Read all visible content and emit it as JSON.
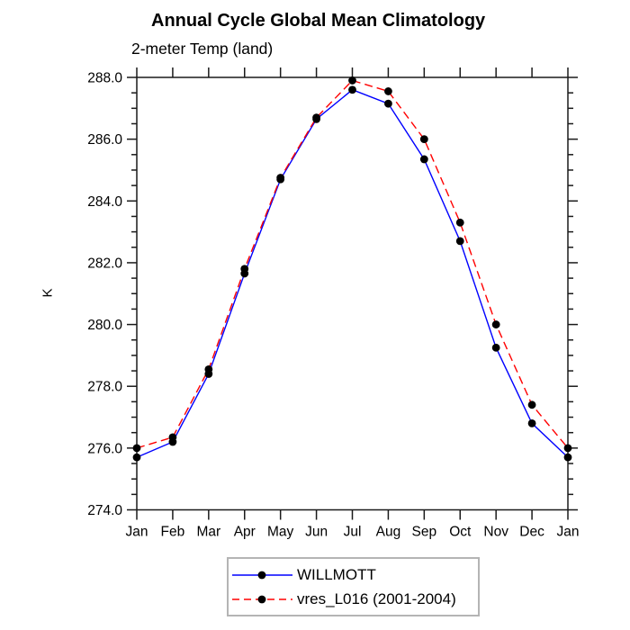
{
  "chart_data": {
    "type": "line",
    "title": "Annual Cycle Global Mean Climatology",
    "subtitle": "2-meter Temp (land)",
    "ylabel": "K",
    "xlabel": "",
    "categories": [
      "Jan",
      "Feb",
      "Mar",
      "Apr",
      "May",
      "Jun",
      "Jul",
      "Aug",
      "Sep",
      "Oct",
      "Nov",
      "Dec",
      "Jan"
    ],
    "ylim": [
      274.0,
      288.0
    ],
    "ytick_major": [
      274,
      276,
      278,
      280,
      282,
      284,
      286,
      288
    ],
    "ytick_labels": [
      "274.0",
      "276.0",
      "278.0",
      "280.0",
      "282.0",
      "284.0",
      "286.0",
      "288.0"
    ],
    "ytick_minor_step": 0.5,
    "grid": false,
    "legend_position": "bottom-center",
    "marker_color": "#000000",
    "axis_color": "#1a1a1a",
    "series": [
      {
        "name": "WILLMOTT",
        "color": "#0000ff",
        "style": "solid",
        "marker": "dot",
        "values": [
          275.7,
          276.2,
          278.4,
          281.65,
          284.7,
          286.65,
          287.6,
          287.15,
          285.35,
          282.7,
          279.25,
          276.8,
          275.7
        ]
      },
      {
        "name": "vres_L016 (2001-2004)",
        "color": "#ff0000",
        "style": "dashed",
        "marker": "dot",
        "values": [
          276.0,
          276.35,
          278.55,
          281.8,
          284.75,
          286.7,
          287.9,
          287.55,
          286.0,
          283.3,
          280.0,
          277.4,
          276.0
        ]
      }
    ]
  }
}
